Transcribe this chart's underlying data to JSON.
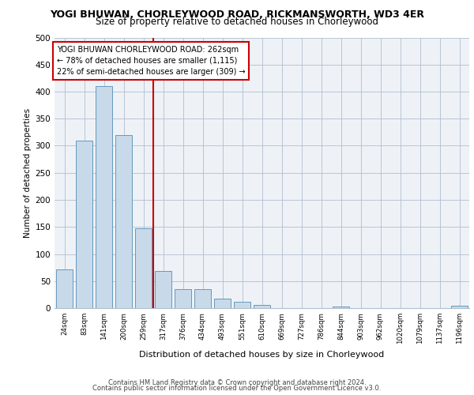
{
  "title1": "YOGI BHUWAN, CHORLEYWOOD ROAD, RICKMANSWORTH, WD3 4ER",
  "title2": "Size of property relative to detached houses in Chorleywood",
  "xlabel": "Distribution of detached houses by size in Chorleywood",
  "ylabel": "Number of detached properties",
  "footer1": "Contains HM Land Registry data © Crown copyright and database right 2024.",
  "footer2": "Contains public sector information licensed under the Open Government Licence v3.0.",
  "annotation_line1": "YOGI BHUWAN CHORLEYWOOD ROAD: 262sqm",
  "annotation_line2": "← 78% of detached houses are smaller (1,115)",
  "annotation_line3": "22% of semi-detached houses are larger (309) →",
  "bar_labels": [
    "24sqm",
    "83sqm",
    "141sqm",
    "200sqm",
    "259sqm",
    "317sqm",
    "376sqm",
    "434sqm",
    "493sqm",
    "551sqm",
    "610sqm",
    "669sqm",
    "727sqm",
    "786sqm",
    "844sqm",
    "903sqm",
    "962sqm",
    "1020sqm",
    "1079sqm",
    "1137sqm",
    "1196sqm"
  ],
  "bar_values": [
    72,
    310,
    410,
    320,
    148,
    68,
    35,
    35,
    18,
    11,
    6,
    0,
    0,
    0,
    3,
    0,
    0,
    0,
    0,
    0,
    4
  ],
  "bar_color": "#c8d9ea",
  "bar_edge_color": "#6699bb",
  "reference_line_color": "#cc0000",
  "reference_bar_index": 4,
  "ylim": [
    0,
    500
  ],
  "yticks": [
    0,
    50,
    100,
    150,
    200,
    250,
    300,
    350,
    400,
    450,
    500
  ],
  "bg_color": "#eef2f7",
  "annotation_box_color": "#ffffff",
  "annotation_box_edge": "#cc0000",
  "grid_color": "#b0bece"
}
